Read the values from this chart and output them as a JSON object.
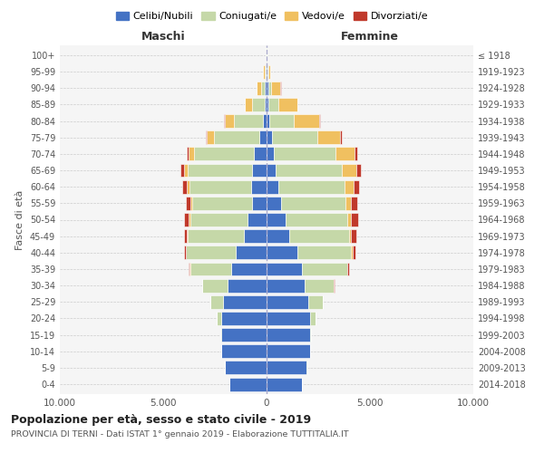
{
  "age_groups_bottom_to_top": [
    "0-4",
    "5-9",
    "10-14",
    "15-19",
    "20-24",
    "25-29",
    "30-34",
    "35-39",
    "40-44",
    "45-49",
    "50-54",
    "55-59",
    "60-64",
    "65-69",
    "70-74",
    "75-79",
    "80-84",
    "85-89",
    "90-94",
    "95-99",
    "100+"
  ],
  "birth_years_bottom_to_top": [
    "2014-2018",
    "2009-2013",
    "2004-2008",
    "1999-2003",
    "1994-1998",
    "1989-1993",
    "1984-1988",
    "1979-1983",
    "1974-1978",
    "1969-1973",
    "1964-1968",
    "1959-1963",
    "1954-1958",
    "1949-1953",
    "1944-1948",
    "1939-1943",
    "1934-1938",
    "1929-1933",
    "1924-1928",
    "1919-1923",
    "≤ 1918"
  ],
  "colors": {
    "celibi": "#4472c4",
    "coniugati": "#c5d8a8",
    "vedovi": "#f0c060",
    "divorziati": "#c0392b"
  },
  "maschi": {
    "celibi": [
      1800,
      2000,
      2200,
      2200,
      2200,
      2100,
      1900,
      1700,
      1500,
      1100,
      900,
      700,
      750,
      700,
      600,
      350,
      180,
      100,
      80,
      60,
      20
    ],
    "coniugati": [
      0,
      5,
      10,
      20,
      200,
      600,
      1200,
      2000,
      2400,
      2700,
      2800,
      2900,
      3000,
      3100,
      2900,
      2200,
      1400,
      600,
      200,
      40,
      10
    ],
    "vedovi": [
      0,
      0,
      0,
      0,
      5,
      5,
      5,
      10,
      20,
      40,
      60,
      80,
      130,
      200,
      270,
      350,
      450,
      350,
      200,
      60,
      10
    ],
    "divorziati": [
      0,
      0,
      0,
      0,
      5,
      10,
      20,
      50,
      80,
      150,
      250,
      230,
      200,
      150,
      100,
      60,
      30,
      20,
      10,
      5,
      0
    ]
  },
  "femmine": {
    "celibi": [
      1700,
      1950,
      2100,
      2100,
      2100,
      2000,
      1850,
      1700,
      1500,
      1100,
      900,
      700,
      550,
      450,
      350,
      250,
      130,
      90,
      70,
      50,
      20
    ],
    "coniugati": [
      0,
      5,
      10,
      30,
      250,
      700,
      1400,
      2200,
      2600,
      2900,
      3000,
      3100,
      3200,
      3200,
      3000,
      2200,
      1200,
      500,
      150,
      30,
      10
    ],
    "vedovi": [
      0,
      0,
      0,
      0,
      5,
      5,
      10,
      20,
      50,
      100,
      200,
      300,
      450,
      700,
      900,
      1100,
      1200,
      900,
      450,
      100,
      20
    ],
    "divorziati": [
      0,
      0,
      0,
      0,
      5,
      15,
      30,
      80,
      130,
      250,
      350,
      300,
      260,
      200,
      140,
      80,
      40,
      20,
      10,
      5,
      0
    ]
  },
  "xlim": 10000,
  "xticks": [
    -10000,
    -5000,
    0,
    5000,
    10000
  ],
  "xticklabels": [
    "10.000",
    "5.000",
    "0",
    "5.000",
    "10.000"
  ],
  "title": "Popolazione per età, sesso e stato civile - 2019",
  "subtitle": "PROVINCIA DI TERNI - Dati ISTAT 1° gennaio 2019 - Elaborazione TUTTITALIA.IT",
  "ylabel_left": "Fasce di età",
  "label_maschi": "Maschi",
  "label_femmine": "Femmine",
  "legend_labels": [
    "Celibi/Nubili",
    "Coniugati/e",
    "Vedovi/e",
    "Divorziati/e"
  ],
  "background_color": "#f5f5f5"
}
